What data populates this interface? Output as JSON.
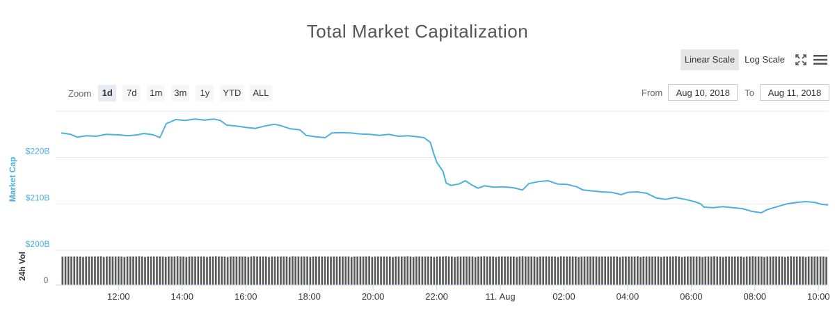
{
  "toolbar": {
    "zoom_label": "Zoom",
    "zoom_buttons": [
      "1d",
      "7d",
      "1m",
      "3m",
      "1y",
      "YTD",
      "ALL"
    ],
    "active_zoom": "1d",
    "from_label": "From",
    "from_value": "Aug 10, 2018",
    "to_label": "To",
    "to_value": "Aug 11, 2018",
    "scale_linear": "Linear Scale",
    "scale_log": "Log Scale",
    "active_scale": "Linear Scale",
    "icons": [
      "fullscreen-icon",
      "menu-icon"
    ]
  },
  "chart_data": {
    "type": "line",
    "title": "Total Market Capitalization",
    "ylabel": "Market Cap",
    "ylim": [
      200,
      230
    ],
    "yticks": [
      {
        "v": 200,
        "label": "$200B"
      },
      {
        "v": 210,
        "label": "$210B"
      },
      {
        "v": 220,
        "label": "$220B"
      }
    ],
    "x_range_hours": [
      10.2,
      34.3
    ],
    "xticks": [
      {
        "h": 12,
        "label": "12:00"
      },
      {
        "h": 14,
        "label": "14:00"
      },
      {
        "h": 16,
        "label": "16:00"
      },
      {
        "h": 18,
        "label": "18:00"
      },
      {
        "h": 20,
        "label": "20:00"
      },
      {
        "h": 22,
        "label": "22:00"
      },
      {
        "h": 24,
        "label": "11. Aug"
      },
      {
        "h": 26,
        "label": "02:00"
      },
      {
        "h": 28,
        "label": "04:00"
      },
      {
        "h": 30,
        "label": "06:00"
      },
      {
        "h": 32,
        "label": "08:00"
      },
      {
        "h": 34,
        "label": "10:00"
      }
    ],
    "line_color": "#4ab0e0",
    "series": [
      {
        "points": [
          [
            10.2,
            225.3
          ],
          [
            10.5,
            225.0
          ],
          [
            10.7,
            224.4
          ],
          [
            11.0,
            224.7
          ],
          [
            11.3,
            224.6
          ],
          [
            11.6,
            225.0
          ],
          [
            12.0,
            224.9
          ],
          [
            12.3,
            224.7
          ],
          [
            12.6,
            224.9
          ],
          [
            12.8,
            225.2
          ],
          [
            13.1,
            224.9
          ],
          [
            13.3,
            224.3
          ],
          [
            13.5,
            227.3
          ],
          [
            13.8,
            228.2
          ],
          [
            14.1,
            228.0
          ],
          [
            14.4,
            228.3
          ],
          [
            14.7,
            228.1
          ],
          [
            15.0,
            228.3
          ],
          [
            15.2,
            228.0
          ],
          [
            15.4,
            227.0
          ],
          [
            15.7,
            226.8
          ],
          [
            16.0,
            226.5
          ],
          [
            16.3,
            226.3
          ],
          [
            16.6,
            226.8
          ],
          [
            16.9,
            227.2
          ],
          [
            17.1,
            226.9
          ],
          [
            17.4,
            226.2
          ],
          [
            17.7,
            226.0
          ],
          [
            17.9,
            224.8
          ],
          [
            18.2,
            224.5
          ],
          [
            18.5,
            224.3
          ],
          [
            18.7,
            225.3
          ],
          [
            19.0,
            225.4
          ],
          [
            19.3,
            225.3
          ],
          [
            19.6,
            225.1
          ],
          [
            19.9,
            225.0
          ],
          [
            20.2,
            224.8
          ],
          [
            20.5,
            225.0
          ],
          [
            20.8,
            224.6
          ],
          [
            21.1,
            224.7
          ],
          [
            21.4,
            224.5
          ],
          [
            21.6,
            224.3
          ],
          [
            21.8,
            223.3
          ],
          [
            21.9,
            221.0
          ],
          [
            22.0,
            219.0
          ],
          [
            22.2,
            217.0
          ],
          [
            22.3,
            214.5
          ],
          [
            22.45,
            214.0
          ],
          [
            22.7,
            214.3
          ],
          [
            22.9,
            215.0
          ],
          [
            23.1,
            214.1
          ],
          [
            23.3,
            213.4
          ],
          [
            23.5,
            213.9
          ],
          [
            23.8,
            213.6
          ],
          [
            24.1,
            213.7
          ],
          [
            24.4,
            213.5
          ],
          [
            24.7,
            213.0
          ],
          [
            24.9,
            214.4
          ],
          [
            25.2,
            214.8
          ],
          [
            25.5,
            215.0
          ],
          [
            25.8,
            214.3
          ],
          [
            26.1,
            214.2
          ],
          [
            26.4,
            213.7
          ],
          [
            26.6,
            213.0
          ],
          [
            26.9,
            212.8
          ],
          [
            27.2,
            212.6
          ],
          [
            27.5,
            212.5
          ],
          [
            27.8,
            212.0
          ],
          [
            28.0,
            212.5
          ],
          [
            28.3,
            212.6
          ],
          [
            28.6,
            212.3
          ],
          [
            28.9,
            211.3
          ],
          [
            29.2,
            211.0
          ],
          [
            29.5,
            211.4
          ],
          [
            29.8,
            211.0
          ],
          [
            30.1,
            210.5
          ],
          [
            30.3,
            210.0
          ],
          [
            30.4,
            209.3
          ],
          [
            30.7,
            209.2
          ],
          [
            31.0,
            209.4
          ],
          [
            31.3,
            209.2
          ],
          [
            31.6,
            209.0
          ],
          [
            31.9,
            208.4
          ],
          [
            32.2,
            208.1
          ],
          [
            32.4,
            208.8
          ],
          [
            32.7,
            209.4
          ],
          [
            33.0,
            210.0
          ],
          [
            33.3,
            210.3
          ],
          [
            33.6,
            210.5
          ],
          [
            33.9,
            210.3
          ],
          [
            34.1,
            209.9
          ],
          [
            34.3,
            209.8
          ]
        ]
      }
    ],
    "volume_ylabel": "24h Vol",
    "volume_ytick_label": "0",
    "volume_bar_count": 260,
    "volume_level": 0.82,
    "volume_color": "#595959"
  }
}
